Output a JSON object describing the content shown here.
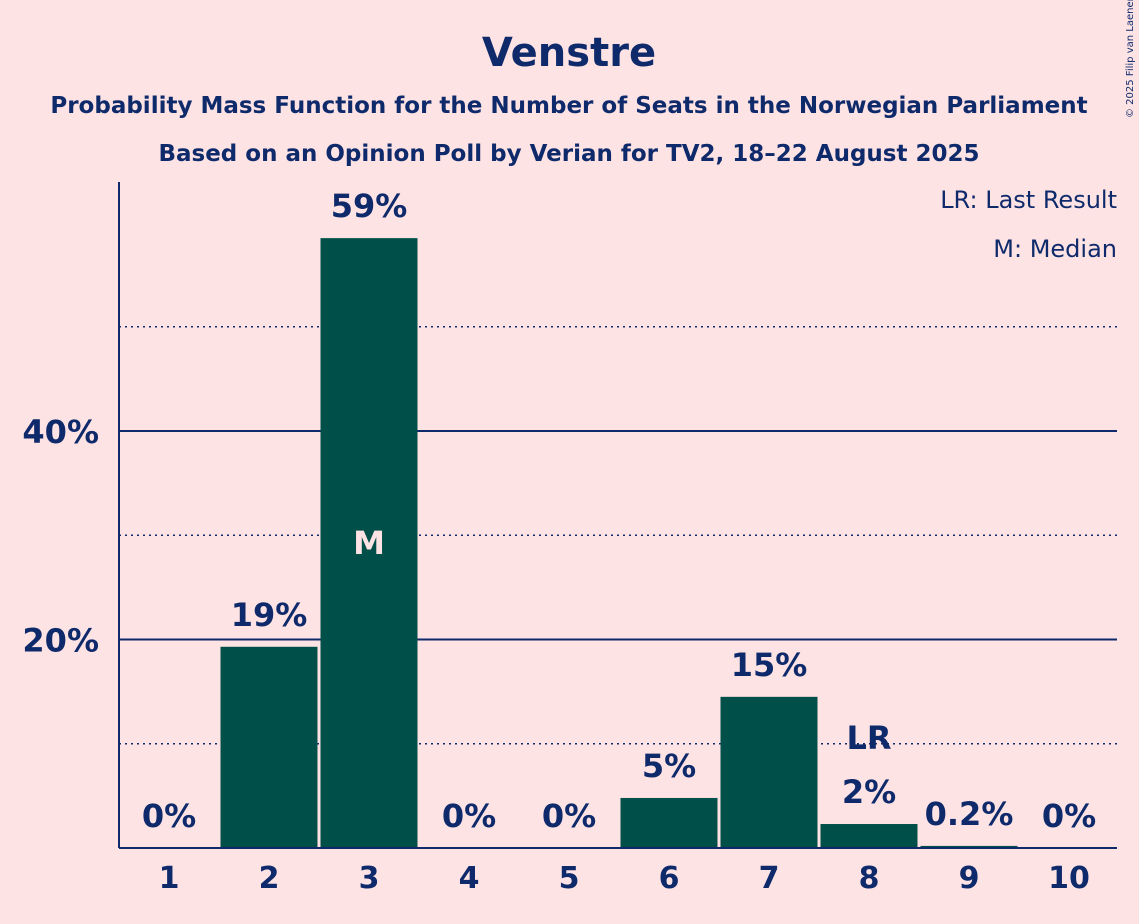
{
  "chart_data": {
    "type": "bar",
    "title": "Venstre",
    "subtitle": "Probability Mass Function for the Number of Seats in the Norwegian Parliament",
    "subtitle2": "Based on an Opinion Poll by Verian for TV2, 18–22 August 2025",
    "copyright": "© 2025 Filip van Laenen",
    "legend": [
      "LR: Last Result",
      "M: Median"
    ],
    "categories": [
      "1",
      "2",
      "3",
      "4",
      "5",
      "6",
      "7",
      "8",
      "9",
      "10"
    ],
    "values": [
      0,
      19.3,
      58.5,
      0,
      0,
      4.8,
      14.5,
      2.3,
      0.2,
      0
    ],
    "value_labels": [
      "0%",
      "19%",
      "59%",
      "0%",
      "0%",
      "5%",
      "15%",
      "2%",
      "0.2%",
      "0%"
    ],
    "median_category": "3",
    "median_label": "M",
    "last_result_category": "8",
    "last_result_label": "LR",
    "ylim": [
      0,
      63.8
    ],
    "yticks_major": [
      20,
      40
    ],
    "ytick_labels": [
      "20%",
      "40%"
    ],
    "yticks_minor": [
      10,
      30,
      50
    ],
    "bar_color": "#004f48",
    "text_color": "#0f2a6b",
    "background": "#fde3e4"
  }
}
